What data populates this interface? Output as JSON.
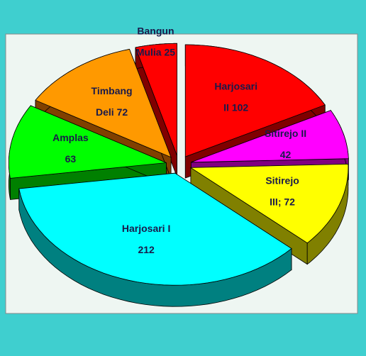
{
  "chart_data": {
    "type": "pie",
    "labels": [
      "Harjosari\nII 102",
      "Sitirejo II\n42",
      "Sitirejo\nIII; 72",
      "Harjosari I\n212",
      "Amplas\n63",
      "Timbang\nDeli 72",
      "Bangun\nMulia 25"
    ],
    "values": [
      102,
      42,
      72,
      212,
      63,
      72,
      25
    ],
    "colors": [
      "#ff0000",
      "#ff00ff",
      "#ffff00",
      "#00ffff",
      "#00ff00",
      "#ff9900",
      "#ff0000"
    ],
    "side_colors": [
      "#800000",
      "#800080",
      "#808000",
      "#008080",
      "#008000",
      "#804000",
      "#800000"
    ]
  }
}
